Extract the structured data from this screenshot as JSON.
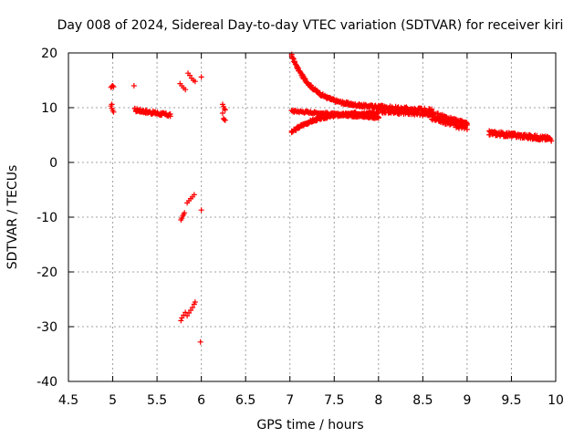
{
  "chart_data": {
    "type": "scatter",
    "title": "Day 008 of 2024, Sidereal Day-to-day VTEC variation (SDTVAR) for receiver kiri",
    "xlabel": "GPS time / hours",
    "ylabel": "SDTVAR / TECUs",
    "xlim": [
      4.5,
      10
    ],
    "ylim": [
      -40,
      20
    ],
    "xticks": [
      4.5,
      5,
      5.5,
      6,
      6.5,
      7,
      7.5,
      8,
      8.5,
      9,
      9.5,
      10
    ],
    "xtick_labels": [
      "4.5",
      "5",
      "5.5",
      "6",
      "6.5",
      "7",
      "7.5",
      "8",
      "8.5",
      "9",
      "9.5",
      "10"
    ],
    "yticks": [
      -40,
      -30,
      -20,
      -10,
      0,
      10,
      20
    ],
    "ytick_labels": [
      "-40",
      "-30",
      "-20",
      "-10",
      "0",
      "10",
      "20"
    ],
    "grid": true,
    "marker": "+",
    "marker_color": "#ff0000",
    "series": [
      {
        "name": "cluster-4.95-upper",
        "points": [
          [
            4.98,
            13.7
          ],
          [
            4.99,
            13.9
          ],
          [
            5.0,
            14.0
          ],
          [
            5.01,
            13.8
          ]
        ]
      },
      {
        "name": "cluster-4.95-lower",
        "points": [
          [
            4.98,
            10.3
          ],
          [
            4.99,
            9.9
          ],
          [
            5.0,
            9.5
          ],
          [
            5.01,
            9.2
          ],
          [
            4.99,
            10.6
          ]
        ]
      },
      {
        "name": "isolated-5.25",
        "points": [
          [
            5.24,
            14.0
          ]
        ]
      },
      {
        "name": "segment-5.25-5.65",
        "segments": [
          {
            "x": [
              5.25,
              5.65
            ],
            "y": [
              9.6,
              8.6
            ],
            "n": 34,
            "band": 0.6
          }
        ]
      },
      {
        "name": "cluster-5.8-upper",
        "points": [
          [
            5.76,
            14.4
          ],
          [
            5.78,
            14.0
          ],
          [
            5.8,
            13.6
          ],
          [
            5.82,
            13.3
          ]
        ]
      },
      {
        "name": "cluster-5.85-diag",
        "points": [
          [
            5.85,
            16.3
          ],
          [
            5.87,
            15.9
          ],
          [
            5.89,
            15.4
          ],
          [
            5.91,
            15.0
          ],
          [
            5.93,
            14.8
          ]
        ]
      },
      {
        "name": "isolated-6.0-upper",
        "points": [
          [
            6.0,
            15.6
          ]
        ]
      },
      {
        "name": "cluster-6.25",
        "points": [
          [
            6.24,
            10.6
          ],
          [
            6.25,
            10.2
          ],
          [
            6.26,
            9.8
          ],
          [
            6.27,
            9.6
          ],
          [
            6.24,
            9.0
          ],
          [
            6.25,
            8.0
          ],
          [
            6.26,
            7.8
          ],
          [
            6.27,
            7.7
          ]
        ]
      },
      {
        "name": "cluster-5.8-neg10",
        "points": [
          [
            5.77,
            -10.5
          ],
          [
            5.78,
            -10.2
          ],
          [
            5.79,
            -9.8
          ],
          [
            5.8,
            -9.5
          ],
          [
            5.81,
            -9.2
          ],
          [
            5.84,
            -7.4
          ],
          [
            5.86,
            -7.0
          ],
          [
            5.88,
            -6.6
          ],
          [
            5.9,
            -6.3
          ],
          [
            5.92,
            -5.9
          ]
        ]
      },
      {
        "name": "isolated-6.0-neg9",
        "points": [
          [
            6.0,
            -8.7
          ]
        ]
      },
      {
        "name": "cluster-5.8-neg28",
        "points": [
          [
            5.77,
            -28.9
          ],
          [
            5.78,
            -28.4
          ],
          [
            5.8,
            -27.9
          ],
          [
            5.82,
            -27.4
          ],
          [
            5.84,
            -28.0
          ],
          [
            5.86,
            -27.5
          ],
          [
            5.88,
            -27.0
          ],
          [
            5.9,
            -26.5
          ],
          [
            5.92,
            -25.9
          ],
          [
            5.93,
            -25.5
          ]
        ]
      },
      {
        "name": "isolated-6.0-neg33",
        "points": [
          [
            5.99,
            -32.8
          ]
        ]
      },
      {
        "name": "arc-7.0-descending",
        "segments": [
          {
            "x": [
              7.02,
              8.0
            ],
            "y": [
              19.5,
              10.0
            ],
            "curve": "decay",
            "n": 90,
            "band": 0.5
          }
        ]
      },
      {
        "name": "arc-7.0-flat",
        "segments": [
          {
            "x": [
              7.02,
              8.0
            ],
            "y": [
              9.4,
              8.2
            ],
            "curve": "linear",
            "n": 70,
            "band": 0.4
          }
        ]
      },
      {
        "name": "arc-7.0-ascending",
        "segments": [
          {
            "x": [
              7.02,
              8.0
            ],
            "y": [
              5.5,
              9.2
            ],
            "curve": "rise",
            "n": 80,
            "band": 0.5
          }
        ]
      },
      {
        "name": "band-8.0-9.0",
        "segments": [
          {
            "x": [
              8.0,
              8.6
            ],
            "y": [
              9.8,
              9.1
            ],
            "curve": "linear",
            "n": 60,
            "band": 1.4
          },
          {
            "x": [
              8.6,
              9.0
            ],
            "y": [
              8.6,
              6.5
            ],
            "curve": "linear",
            "n": 40,
            "band": 1.6
          }
        ]
      },
      {
        "name": "band-9.25-9.95",
        "segments": [
          {
            "x": [
              9.25,
              9.95
            ],
            "y": [
              5.4,
              4.3
            ],
            "curve": "linear",
            "n": 70,
            "band": 0.8
          }
        ]
      }
    ]
  }
}
